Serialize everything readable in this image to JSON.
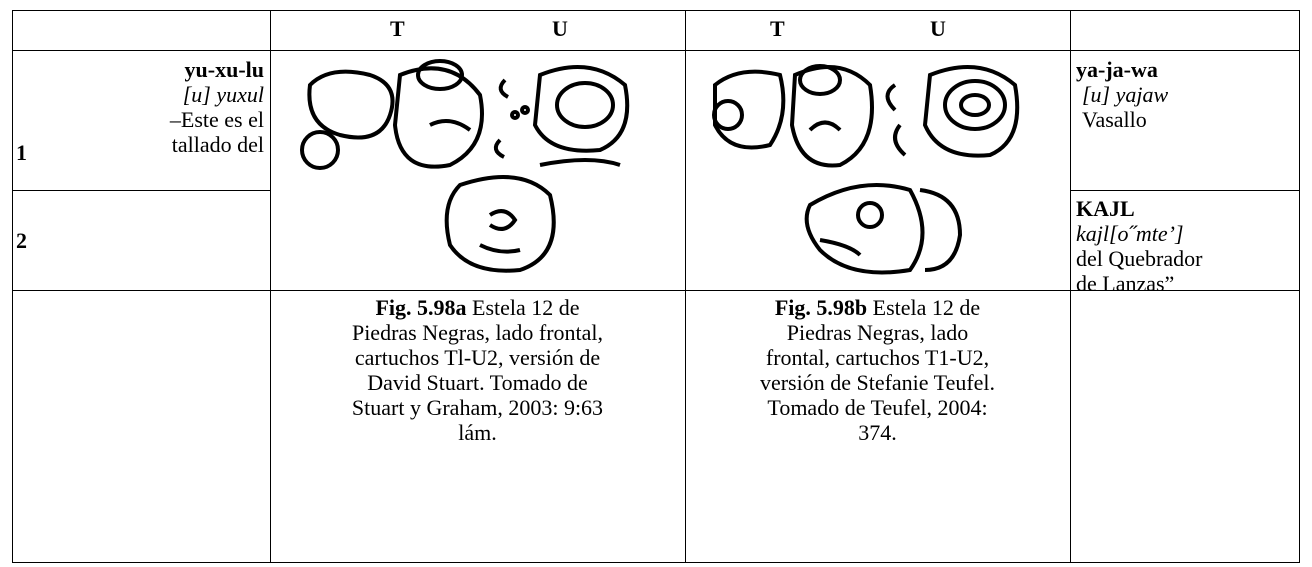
{
  "header": {
    "col2": [
      "T",
      "U"
    ],
    "col3": [
      "T",
      "U"
    ]
  },
  "rows": [
    {
      "number": "1",
      "left": [
        "yu-xu-lu",
        "[u] yuxul",
        "–Este es el",
        "tallado del"
      ],
      "right": [
        "ya-ja-wa",
        "[u] yajaw",
        "Vasallo"
      ]
    },
    {
      "number": "2",
      "right": [
        "KAJL",
        "kajl[o˝mte’]",
        "del Quebrador",
        "de Lanzas”"
      ]
    }
  ],
  "captions": [
    {
      "label": "Fig. 5.98a",
      "lines": [
        "Estela 12 de",
        "Piedras Negras, lado frontal,",
        "cartuchos Tl-U2, versión de",
        "David Stuart. Tomado de",
        "Stuart y Graham, 2003: 9:63",
        "lám."
      ]
    },
    {
      "label": "Fig. 5.98b",
      "lines": [
        "Estela 12 de",
        "Piedras Negras, lado",
        "frontal, cartuchos T1-U2,",
        "versión de Stefanie Teufel.",
        "Tomado de Teufel, 2004:",
        "374."
      ]
    }
  ]
}
